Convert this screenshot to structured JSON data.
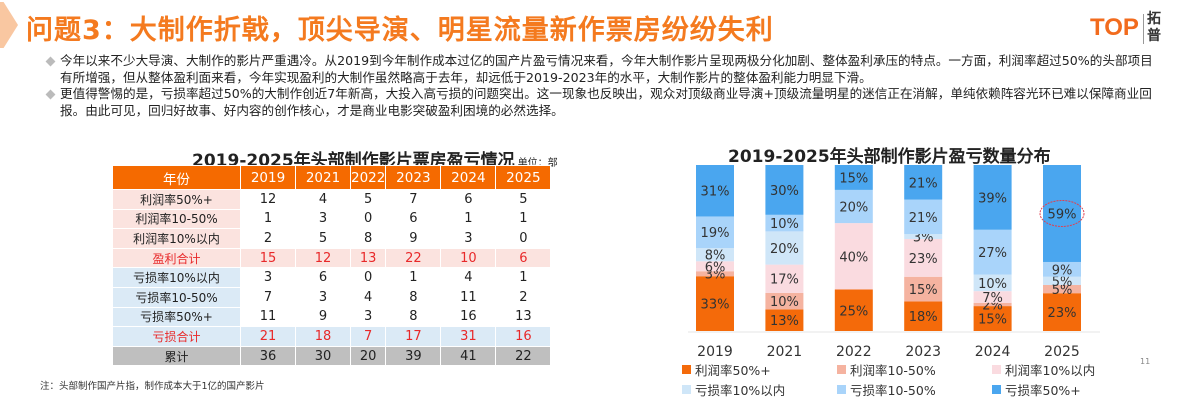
{
  "title": "问题3：大制作折戟，顶尖导演、明星流量新作票房纷纷失利",
  "logo": {
    "text": "TOP",
    "cn": "拓普"
  },
  "bullets": [
    "今年以来不少大导演、大制作的影片严重遇冷。从2019到今年制作成本过亿的国产片盈亏情况来看，今年大制作影片呈现两极分化加剧、整体盈利承压的特点。一方面，利润率超过50%的头部项目有所增强，但从整体盈利面来看，今年实现盈利的大制作虽然略高于去年，却远低于2019-2023年的水平，大制作影片的整体盈利能力明显下滑。",
    "更值得警惕的是，亏损率超过50%的大制作创近7年新高，大投入高亏损的问题突出。这一现象也反映出，观众对顶级商业导演+顶级流量明星的迷信正在消解，单纯依赖阵容光环已难以保障商业回报。由此可见，回归好故事、好内容的创作核心，才是商业电影突破盈利困境的必然选择。"
  ],
  "table": {
    "title": "2019-2025年头部制作影片票房盈亏情况",
    "unit": "单位：部",
    "header": [
      "年份",
      "2019",
      "2021",
      "2022",
      "2023",
      "2024",
      "2025"
    ],
    "rows": [
      {
        "label": "利润率50%+",
        "values": [
          "12",
          "4",
          "5",
          "7",
          "6",
          "5"
        ]
      },
      {
        "label": "利润率10-50%",
        "values": [
          "1",
          "3",
          "0",
          "6",
          "1",
          "1"
        ]
      },
      {
        "label": "利润率10%以内",
        "values": [
          "2",
          "5",
          "8",
          "9",
          "3",
          "0"
        ]
      },
      {
        "label": "盈利合计",
        "values": [
          "15",
          "12",
          "13",
          "22",
          "10",
          "6"
        ]
      },
      {
        "label": "亏损率10%以内",
        "values": [
          "3",
          "6",
          "0",
          "1",
          "4",
          "1"
        ]
      },
      {
        "label": "亏损率10-50%",
        "values": [
          "7",
          "3",
          "4",
          "8",
          "11",
          "2"
        ]
      },
      {
        "label": "亏损率50%+",
        "values": [
          "11",
          "9",
          "3",
          "8",
          "16",
          "13"
        ]
      },
      {
        "label": "亏损合计",
        "values": [
          "21",
          "18",
          "7",
          "17",
          "31",
          "16"
        ]
      },
      {
        "label": "累计",
        "values": [
          "36",
          "30",
          "20",
          "39",
          "41",
          "22"
        ]
      }
    ]
  },
  "note": "注：头部制作国产片指，制作成本大于1亿的国产影片",
  "page_number": "11",
  "chart_data": {
    "type": "bar",
    "stacked": true,
    "percent": true,
    "title": "2019-2025年头部制作影片盈亏数量分布",
    "categories": [
      "2019",
      "2021",
      "2022",
      "2023",
      "2024",
      "2025"
    ],
    "series": [
      {
        "name": "利润率50%+",
        "color": "#f46a0a",
        "values": [
          33,
          13,
          25,
          18,
          15,
          23
        ]
      },
      {
        "name": "利润率10-50%",
        "color": "#f5b3a0",
        "values": [
          3,
          10,
          0,
          15,
          2,
          5
        ]
      },
      {
        "name": "利润率10%以内",
        "color": "#fadbe0",
        "values": [
          6,
          17,
          40,
          23,
          7,
          0
        ]
      },
      {
        "name": "亏损率10%以内",
        "color": "#cfe6f8",
        "values": [
          8,
          20,
          0,
          3,
          10,
          5
        ]
      },
      {
        "name": "亏损率10-50%",
        "color": "#a9d4fa",
        "values": [
          19,
          10,
          20,
          21,
          27,
          9
        ]
      },
      {
        "name": "亏损率50%+",
        "color": "#4aa6ef",
        "values": [
          31,
          30,
          15,
          21,
          39,
          59
        ]
      }
    ],
    "highlight": {
      "category": "2025",
      "series": "亏损率50%+",
      "color": "#e04050"
    },
    "legend": "bottom",
    "grid": false
  }
}
